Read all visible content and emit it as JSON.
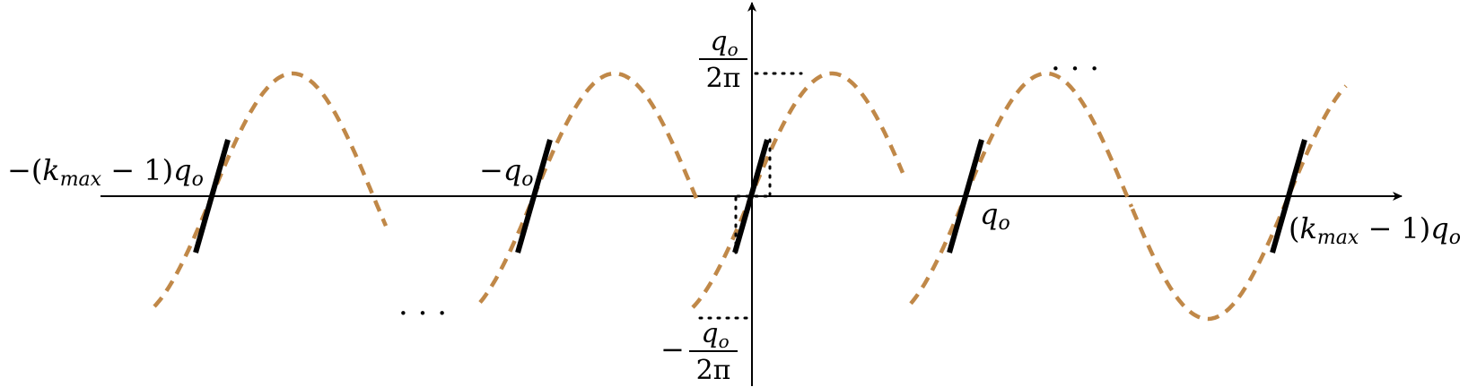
{
  "colors": {
    "axis": "#000000",
    "curve": "#c08848",
    "segment": "#000000"
  },
  "labels": {
    "neg_kmax": "−(k_max − 1)q_o",
    "neg_q0": "−q_o",
    "q0": "q_o",
    "pos_kmax": "(k_max − 1)q_o",
    "top_fraction": "q_o / 2π",
    "bottom_fraction": "− q_o / 2π",
    "ellipsis_low": "· · ·",
    "ellipsis_high": "· · ·"
  },
  "icons": {
    "x_arrow": "arrowhead-right-icon",
    "y_arrow": "arrowhead-up-icon"
  }
}
